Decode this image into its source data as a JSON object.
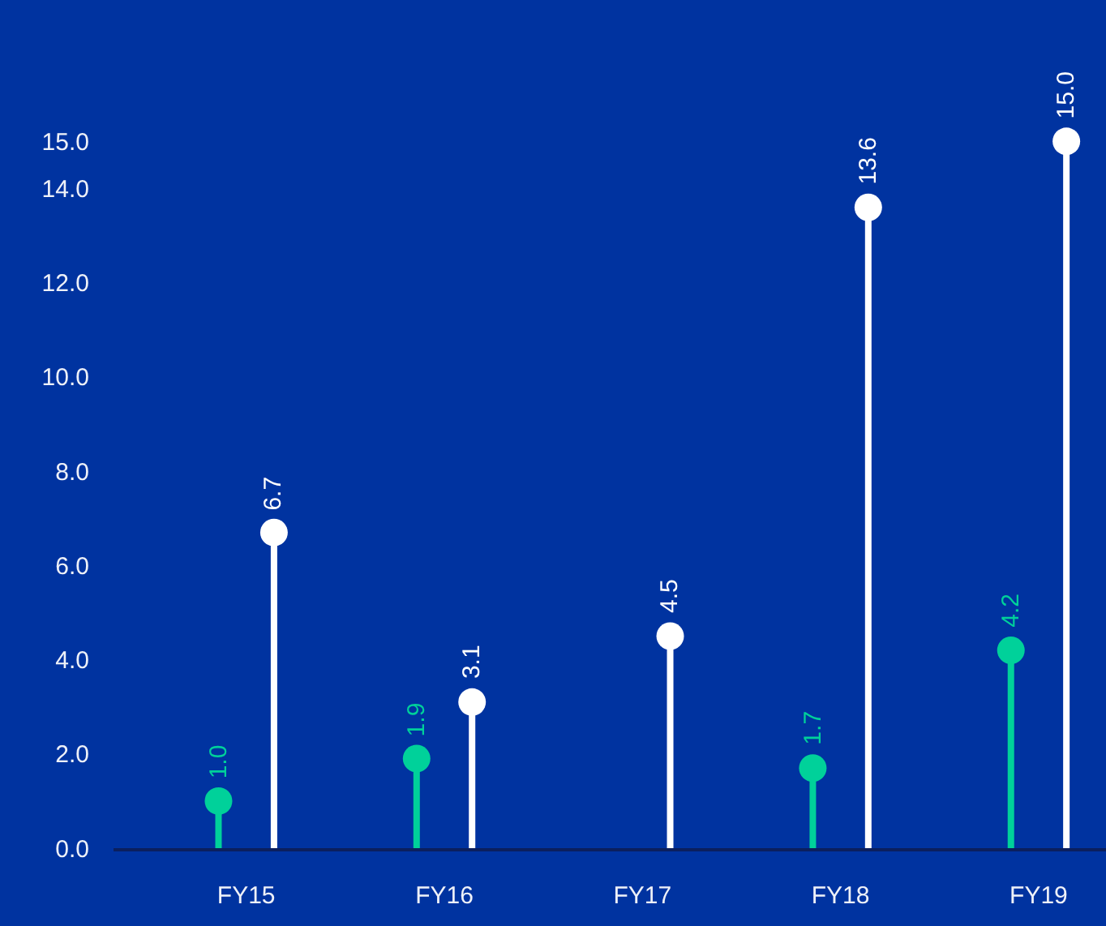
{
  "chart_data": {
    "type": "lollipop",
    "categories": [
      "FY15",
      "FY16",
      "FY17",
      "FY18",
      "FY19"
    ],
    "series": [
      {
        "color": "#00d19a",
        "values": [
          1.0,
          1.9,
          null,
          1.7,
          4.2
        ],
        "value_labels": [
          "1.0",
          "1.9",
          null,
          "1.7",
          "4.2"
        ]
      },
      {
        "color": "#ffffff",
        "values": [
          6.7,
          3.1,
          4.5,
          13.6,
          15.0
        ],
        "value_labels": [
          "6.7",
          "3.1",
          "4.5",
          "13.6",
          "15.0"
        ]
      }
    ],
    "ylim": [
      0,
      18
    ],
    "yticks": [
      {
        "value": 0,
        "label": "0.0"
      },
      {
        "value": 2,
        "label": "2.0"
      },
      {
        "value": 4,
        "label": "4.0"
      },
      {
        "value": 6,
        "label": "6.0"
      },
      {
        "value": 8,
        "label": "8.0"
      },
      {
        "value": 10,
        "label": "10.0"
      },
      {
        "value": 12,
        "label": "12.0"
      },
      {
        "value": 14,
        "label": "14.0"
      },
      {
        "value": 15,
        "label": "15.0"
      }
    ],
    "marker": "circle"
  }
}
